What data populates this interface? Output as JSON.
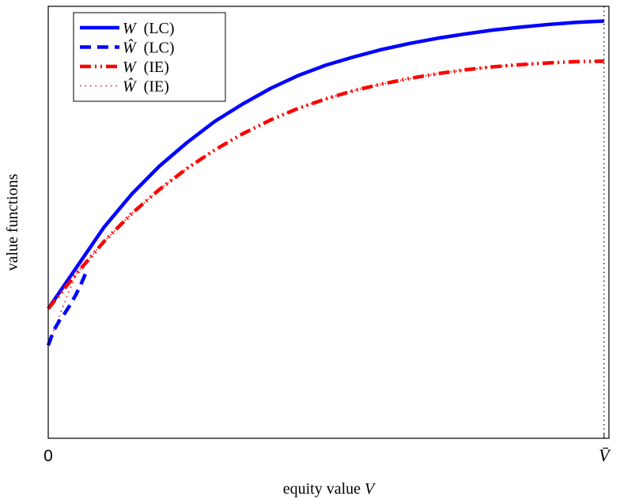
{
  "chart_data": {
    "type": "line",
    "xlabel": "equity value V",
    "ylabel": "value functions",
    "x_ticks": [
      {
        "value": 0,
        "label": "0"
      },
      {
        "value": 1,
        "label": "V̄"
      }
    ],
    "xlim": [
      0,
      1.0087
    ],
    "ylim": [
      0,
      1
    ],
    "grid": false,
    "legend_position": "top-left",
    "series": [
      {
        "name": "W (LC)",
        "color": "#0000ff",
        "style": "solid",
        "x": [
          0,
          0.05,
          0.1,
          0.15,
          0.2,
          0.25,
          0.3,
          0.35,
          0.4,
          0.45,
          0.5,
          0.55,
          0.6,
          0.65,
          0.7,
          0.75,
          0.8,
          0.85,
          0.9,
          0.95,
          1.0
        ],
        "y": [
          0.3,
          0.394,
          0.488,
          0.565,
          0.63,
          0.685,
          0.734,
          0.774,
          0.81,
          0.84,
          0.864,
          0.883,
          0.9,
          0.914,
          0.926,
          0.936,
          0.945,
          0.952,
          0.958,
          0.963,
          0.966
        ]
      },
      {
        "name": "Ŵ (LC)",
        "color": "#0000ff",
        "style": "dashed",
        "x": [
          0,
          0.01,
          0.02,
          0.03,
          0.04,
          0.05,
          0.06,
          0.07
        ],
        "y": [
          0.215,
          0.25,
          0.272,
          0.29,
          0.31,
          0.333,
          0.36,
          0.39
        ]
      },
      {
        "name": "W (IE)",
        "color": "#ff0000",
        "style": "dashdot",
        "x": [
          0,
          0.05,
          0.1,
          0.15,
          0.2,
          0.25,
          0.3,
          0.35,
          0.4,
          0.45,
          0.5,
          0.55,
          0.6,
          0.65,
          0.7,
          0.75,
          0.8,
          0.85,
          0.9,
          0.95,
          1.0
        ],
        "y": [
          0.3,
          0.38,
          0.455,
          0.52,
          0.576,
          0.625,
          0.668,
          0.705,
          0.737,
          0.764,
          0.786,
          0.805,
          0.82,
          0.833,
          0.844,
          0.853,
          0.86,
          0.865,
          0.869,
          0.872,
          0.873
        ]
      },
      {
        "name": "Ŵ (IE)",
        "color": "#ff0000",
        "style": "dotted",
        "x": [
          0,
          0.025,
          0.05,
          0.1,
          0.15,
          0.2,
          0.25,
          0.3,
          0.35,
          0.4,
          0.45,
          0.5,
          0.55,
          0.6,
          0.65,
          0.7,
          0.75,
          0.8,
          0.85,
          0.9,
          0.95,
          1.0
        ],
        "y": [
          0.215,
          0.3,
          0.38,
          0.455,
          0.52,
          0.576,
          0.625,
          0.668,
          0.705,
          0.737,
          0.764,
          0.786,
          0.805,
          0.82,
          0.833,
          0.844,
          0.853,
          0.86,
          0.865,
          0.869,
          0.872,
          0.873
        ]
      }
    ],
    "vertical_marker": {
      "x": 1,
      "style": "dotted",
      "color": "#000000"
    }
  }
}
